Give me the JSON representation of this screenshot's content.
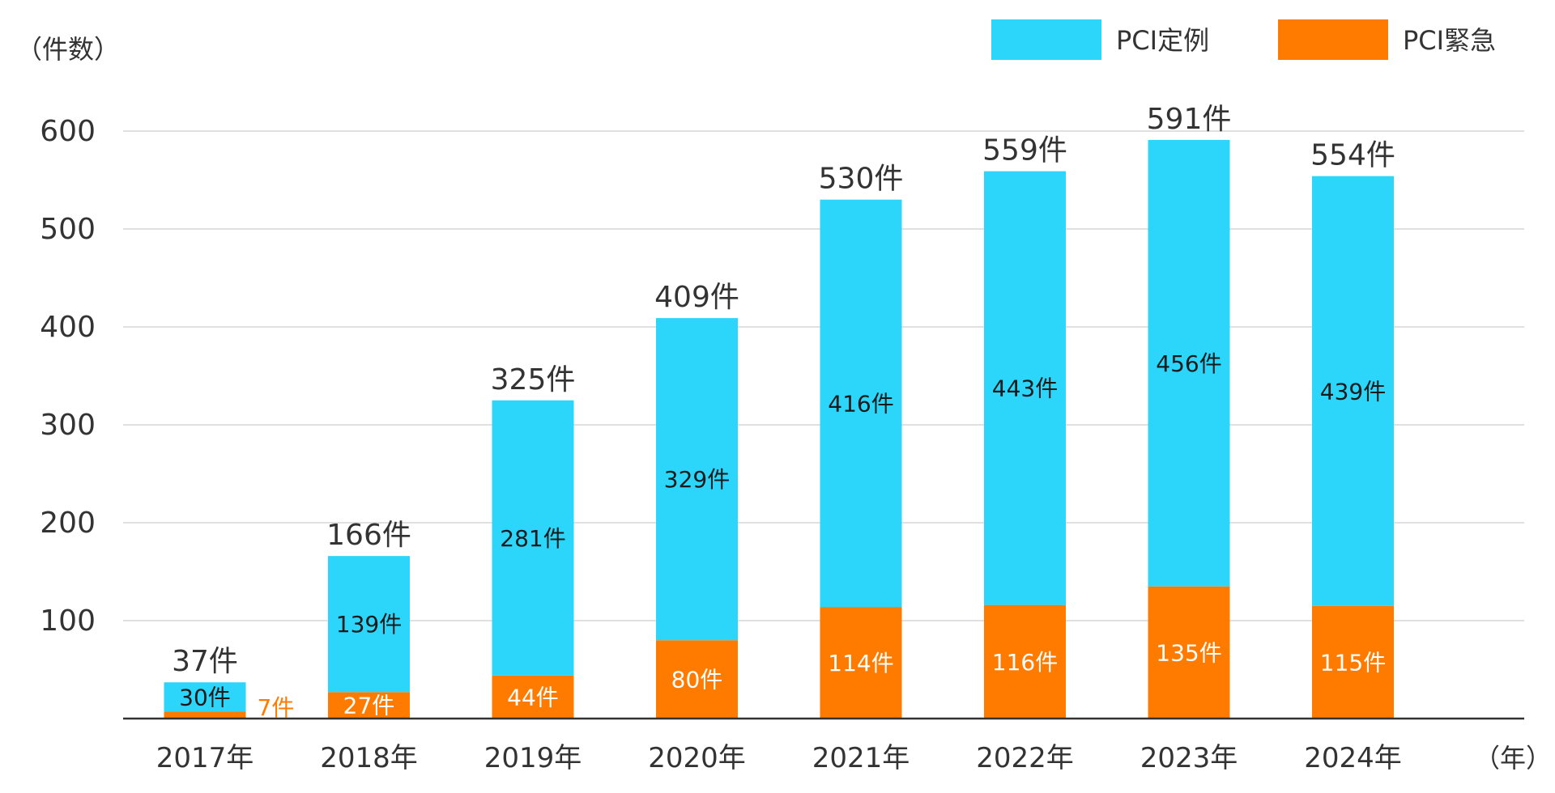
{
  "chart_data": {
    "type": "bar",
    "stacked": true,
    "y_unit_label": "（件数）",
    "x_unit_label": "（年）",
    "categories": [
      "2017年",
      "2018年",
      "2019年",
      "2020年",
      "2021年",
      "2022年",
      "2023年",
      "2024年"
    ],
    "series": [
      {
        "name": "PCI緊急",
        "color": "#FF7B00",
        "values": [
          7,
          27,
          44,
          80,
          114,
          116,
          135,
          115
        ],
        "labels": [
          "7件",
          "27件",
          "44件",
          "80件",
          "114件",
          "116件",
          "135件",
          "115件"
        ]
      },
      {
        "name": "PCI定例",
        "color": "#2CD5FA",
        "values": [
          30,
          139,
          281,
          329,
          416,
          443,
          456,
          439
        ],
        "labels": [
          "30件",
          "139件",
          "281件",
          "329件",
          "416件",
          "443件",
          "456件",
          "439件"
        ]
      }
    ],
    "totals": [
      "37件",
      "166件",
      "325件",
      "409件",
      "530件",
      "559件",
      "591件",
      "554件"
    ],
    "yticks": [
      "100",
      "200",
      "300",
      "400",
      "500",
      "600"
    ],
    "ylim": [
      0,
      600
    ],
    "grid": true,
    "legend_position": "top-right"
  }
}
